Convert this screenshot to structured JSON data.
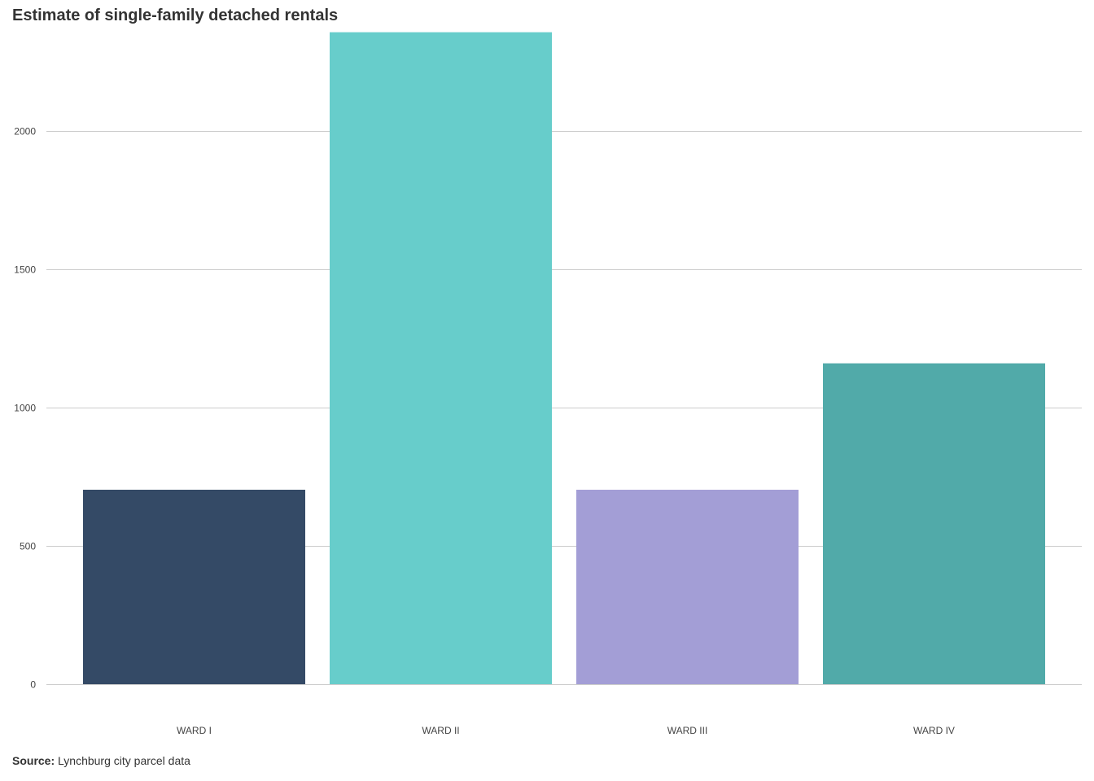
{
  "chart_data": {
    "type": "bar",
    "title": "Estimate of single-family detached rentals",
    "categories": [
      "WARD I",
      "WARD II",
      "WARD III",
      "WARD IV"
    ],
    "values": [
      703,
      2357,
      703,
      1160
    ],
    "colors": [
      "#344a66",
      "#67cdcb",
      "#a39ed6",
      "#51aaa9"
    ],
    "xlabel": "",
    "ylabel": "",
    "ylim": [
      0,
      2400
    ],
    "yticks": [
      0,
      500,
      1000,
      1500,
      2000
    ],
    "grid": true,
    "legend": "none"
  },
  "source": {
    "label": "Source:",
    "text": "Lynchburg city parcel data"
  },
  "colors": {
    "grid": "#cccccc",
    "tick_text": "#444444",
    "title_text": "#333333"
  }
}
